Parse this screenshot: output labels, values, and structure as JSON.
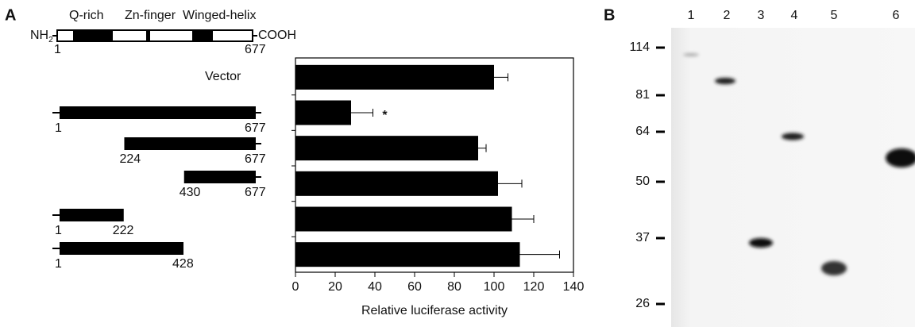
{
  "panel_a": {
    "label": "A",
    "domains": [
      "Q-rich",
      "Zn-finger",
      "Winged-helix"
    ],
    "n_terminus": {
      "base": "NH",
      "subscript": "2"
    },
    "c_terminus": "COOH",
    "full_length": {
      "start": 1,
      "end": 677
    },
    "vector": "Vector",
    "constructs": [
      {
        "start": 1,
        "end": 677
      },
      {
        "start": 224,
        "end": 677
      },
      {
        "start": 430,
        "end": 677
      },
      {
        "start": 1,
        "end": 222
      },
      {
        "start": 1,
        "end": 428
      }
    ]
  },
  "chart_data": {
    "type": "bar",
    "orientation": "horizontal",
    "values": [
      100,
      28,
      92,
      102,
      109,
      113
    ],
    "errors": [
      7,
      11,
      4,
      12,
      11,
      20
    ],
    "value_annotations": [
      null,
      "*",
      null,
      null,
      null,
      null
    ],
    "color": "#000000",
    "xlim": [
      0,
      140
    ],
    "xticks": [
      0,
      20,
      40,
      60,
      80,
      100,
      120,
      140
    ],
    "xlabel": "Relative luciferase activity"
  },
  "panel_b": {
    "label": "B",
    "lanes": [
      "1",
      "2",
      "3",
      "4",
      "5",
      "6"
    ],
    "markers": [
      114,
      81,
      64,
      50,
      37,
      26
    ]
  }
}
